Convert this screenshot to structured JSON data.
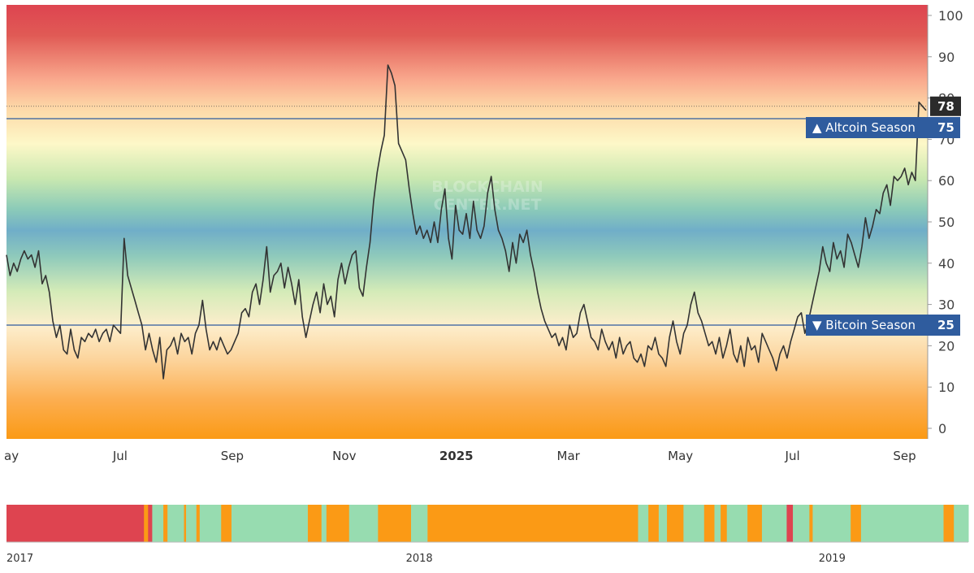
{
  "watermark": [
    "BLOCKCHAIN",
    "CENTER.NET"
  ],
  "markers": {
    "altcoin": {
      "label": "▲ Altcoin Season",
      "value": "75"
    },
    "bitcoin": {
      "label": "▼ Bitcoin Season",
      "value": "25"
    },
    "current": {
      "value": "78"
    }
  },
  "colors": {
    "red": "#de4450",
    "orange": "#fb9a15",
    "green": "#97dcb0",
    "blue": "#70aec8",
    "yellow": "#fdf8c8",
    "marker_bg": "#2f5c9e",
    "line": "#333333"
  },
  "chart_data": [
    {
      "type": "line",
      "yaxis_ticks": [
        "0",
        "10",
        "20",
        "30",
        "40",
        "50",
        "60",
        "70",
        "80",
        "90",
        "100"
      ],
      "ylim": [
        0,
        100
      ],
      "x_tick_labels": [
        "ay",
        "Jul",
        "Sep",
        "Nov",
        "2025",
        "Mar",
        "May",
        "Jul",
        "Sep"
      ],
      "x_tick_positions": [
        0.0,
        1.0,
        2.0,
        3.0,
        4.0,
        5.0,
        6.0,
        7.0,
        8.0
      ],
      "xlim": [
        0.0,
        8.25
      ],
      "thresholds": [
        75,
        25
      ],
      "grid": false,
      "series": [
        {
          "name": "",
          "values": [
            42,
            37,
            40,
            38,
            41,
            43,
            41,
            42,
            39,
            43,
            35,
            37,
            33,
            26,
            22,
            25,
            19,
            18,
            24,
            19,
            17,
            22,
            21,
            23,
            22,
            24,
            21,
            23,
            24,
            21,
            25,
            24,
            23,
            46,
            37,
            34,
            31,
            28,
            25,
            19,
            23,
            19,
            16,
            22,
            12,
            19,
            20,
            22,
            18,
            23,
            21,
            22,
            18,
            23,
            25,
            31,
            24,
            19,
            21,
            19,
            22,
            20,
            18,
            19,
            21,
            23,
            28,
            29,
            27,
            33,
            35,
            30,
            36,
            44,
            33,
            37,
            38,
            40,
            34,
            39,
            35,
            30,
            36,
            27,
            22,
            26,
            30,
            33,
            28,
            35,
            30,
            32,
            27,
            36,
            40,
            35,
            39,
            42,
            43,
            34,
            32,
            39,
            45,
            55,
            62,
            67,
            71,
            88,
            86,
            83,
            69,
            67,
            65,
            58,
            52,
            47,
            49,
            46,
            48,
            45,
            50,
            45,
            53,
            58,
            46,
            41,
            54,
            48,
            47,
            52,
            46,
            55,
            48,
            46,
            49,
            57,
            61,
            53,
            48,
            46,
            43,
            38,
            45,
            40,
            47,
            45,
            48,
            42,
            38,
            33,
            29,
            26,
            24,
            22,
            23,
            20,
            22,
            19,
            25,
            22,
            23,
            28,
            30,
            26,
            22,
            21,
            19,
            24,
            21,
            19,
            21,
            17,
            22,
            18,
            20,
            21,
            17,
            16,
            18,
            15,
            20,
            19,
            22,
            18,
            17,
            15,
            22,
            26,
            21,
            18,
            23,
            25,
            30,
            33,
            28,
            26,
            23,
            20,
            21,
            18,
            22,
            17,
            20,
            24,
            18,
            16,
            20,
            15,
            22,
            19,
            20,
            16,
            23,
            21,
            19,
            17,
            14,
            18,
            20,
            17,
            21,
            24,
            27,
            28,
            23,
            26,
            30,
            34,
            38,
            44,
            40,
            38,
            45,
            41,
            43,
            39,
            47,
            45,
            42,
            39,
            44,
            51,
            46,
            49,
            53,
            52,
            57,
            59,
            54,
            61,
            60,
            61,
            63,
            59,
            62,
            60,
            79,
            78,
            77
          ]
        }
      ],
      "current_value": 78
    },
    {
      "type": "bar",
      "title": "",
      "x_tick_labels": [
        "2017",
        "2018",
        "2019"
      ],
      "x_tick_positions": [
        0.0,
        1.0,
        2.0
      ],
      "xlim": [
        0.0,
        2.33
      ],
      "segments": [
        {
          "start": 0.0,
          "end": 0.333,
          "season": "bitcoin"
        },
        {
          "start": 0.333,
          "end": 0.343,
          "season": "neutral"
        },
        {
          "start": 0.343,
          "end": 0.353,
          "season": "bitcoin"
        },
        {
          "start": 0.353,
          "end": 0.38,
          "season": "altcoin"
        },
        {
          "start": 0.38,
          "end": 0.39,
          "season": "neutral"
        },
        {
          "start": 0.39,
          "end": 0.43,
          "season": "altcoin"
        },
        {
          "start": 0.43,
          "end": 0.435,
          "season": "neutral"
        },
        {
          "start": 0.435,
          "end": 0.46,
          "season": "altcoin"
        },
        {
          "start": 0.46,
          "end": 0.468,
          "season": "neutral"
        },
        {
          "start": 0.468,
          "end": 0.52,
          "season": "altcoin"
        },
        {
          "start": 0.52,
          "end": 0.545,
          "season": "neutral"
        },
        {
          "start": 0.545,
          "end": 0.73,
          "season": "altcoin"
        },
        {
          "start": 0.73,
          "end": 0.763,
          "season": "neutral"
        },
        {
          "start": 0.763,
          "end": 0.775,
          "season": "altcoin"
        },
        {
          "start": 0.775,
          "end": 0.83,
          "season": "neutral"
        },
        {
          "start": 0.83,
          "end": 0.9,
          "season": "altcoin"
        },
        {
          "start": 0.9,
          "end": 0.98,
          "season": "neutral"
        },
        {
          "start": 0.98,
          "end": 1.02,
          "season": "altcoin"
        },
        {
          "start": 1.02,
          "end": 1.53,
          "season": "neutral"
        },
        {
          "start": 1.53,
          "end": 1.555,
          "season": "altcoin"
        },
        {
          "start": 1.555,
          "end": 1.58,
          "season": "neutral"
        },
        {
          "start": 1.58,
          "end": 1.6,
          "season": "altcoin"
        },
        {
          "start": 1.6,
          "end": 1.64,
          "season": "neutral"
        },
        {
          "start": 1.64,
          "end": 1.69,
          "season": "altcoin"
        },
        {
          "start": 1.69,
          "end": 1.715,
          "season": "neutral"
        },
        {
          "start": 1.715,
          "end": 1.73,
          "season": "altcoin"
        },
        {
          "start": 1.73,
          "end": 1.745,
          "season": "neutral"
        },
        {
          "start": 1.745,
          "end": 1.795,
          "season": "altcoin"
        },
        {
          "start": 1.795,
          "end": 1.83,
          "season": "neutral"
        },
        {
          "start": 1.83,
          "end": 1.89,
          "season": "altcoin"
        },
        {
          "start": 1.89,
          "end": 1.905,
          "season": "bitcoin"
        },
        {
          "start": 1.905,
          "end": 1.945,
          "season": "altcoin"
        },
        {
          "start": 1.945,
          "end": 1.953,
          "season": "neutral"
        },
        {
          "start": 1.953,
          "end": 2.045,
          "season": "altcoin"
        },
        {
          "start": 2.045,
          "end": 2.07,
          "season": "neutral"
        },
        {
          "start": 2.07,
          "end": 2.27,
          "season": "altcoin"
        },
        {
          "start": 2.27,
          "end": 2.295,
          "season": "neutral"
        },
        {
          "start": 2.295,
          "end": 2.33,
          "season": "altcoin"
        }
      ]
    }
  ]
}
